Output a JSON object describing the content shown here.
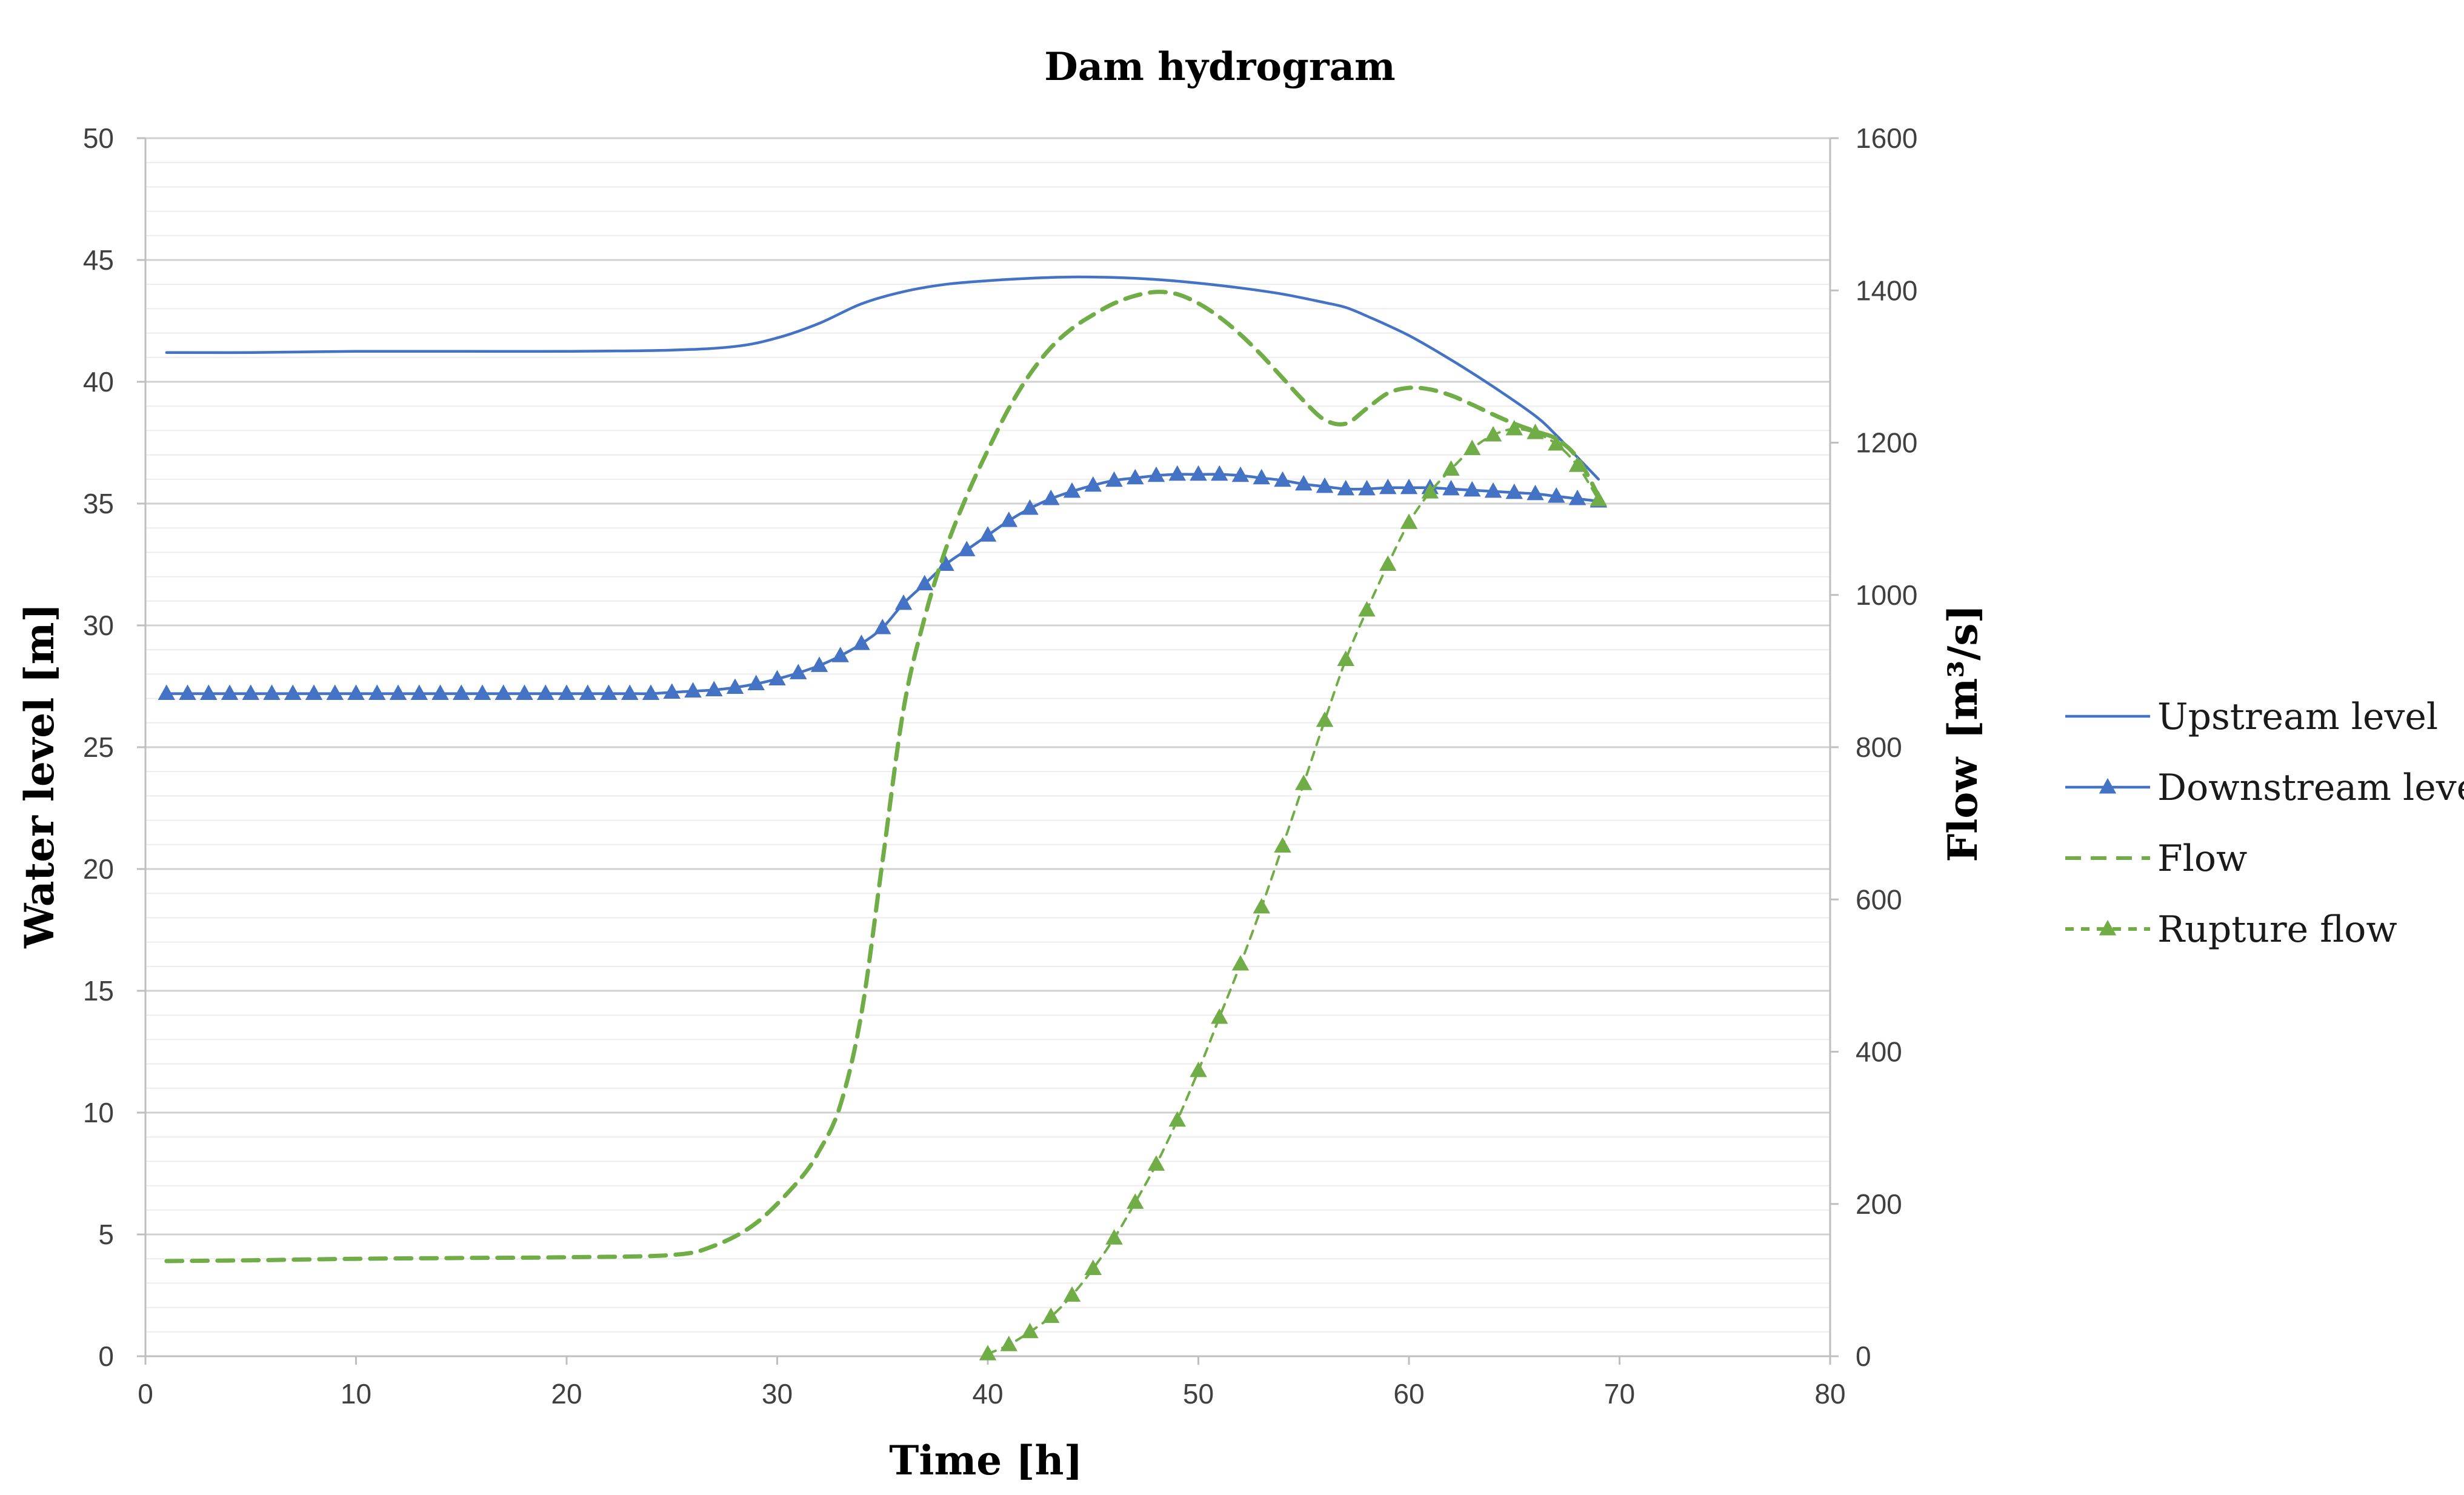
{
  "chart_data": {
    "type": "line",
    "title": "Dam hydrogram",
    "xlabel": "Time [h]",
    "ylabel_left": "Water level [m]",
    "ylabel_right_main": "Flow",
    "ylabel_right_unit": "[m³/s]",
    "xlim": [
      0,
      80
    ],
    "ylim_left": [
      0,
      50
    ],
    "ylim_right": [
      0,
      1600
    ],
    "x_ticks": [
      "0",
      "10",
      "20",
      "30",
      "40",
      "50",
      "60",
      "70",
      "80"
    ],
    "y_left_ticks": [
      "0",
      "5",
      "10",
      "15",
      "20",
      "25",
      "30",
      "35",
      "40",
      "45",
      "50"
    ],
    "y_right_ticks": [
      "0",
      "200",
      "400",
      "600",
      "800",
      "1000",
      "1200",
      "1400",
      "1600"
    ],
    "grid": true,
    "legend_position": "right",
    "colors": {
      "blue": "#4472C4",
      "green": "#70AD47",
      "grid": "#d9d9d9",
      "axis": "#bfbfbf"
    },
    "series": [
      {
        "name": "Upstream level",
        "axis": "left",
        "style": "solid",
        "marker": "none",
        "color": "#4472C4",
        "x": [
          1,
          5,
          10,
          15,
          20,
          25,
          28,
          30,
          32,
          34,
          36,
          38,
          40,
          42,
          44,
          46,
          48,
          50,
          52,
          54,
          56,
          57,
          58,
          60,
          62,
          64,
          66,
          67,
          68,
          69
        ],
        "y": [
          41.2,
          41.2,
          41.25,
          41.25,
          41.25,
          41.3,
          41.45,
          41.8,
          42.4,
          43.2,
          43.7,
          44.0,
          44.15,
          44.25,
          44.3,
          44.28,
          44.2,
          44.05,
          43.85,
          43.6,
          43.25,
          43.05,
          42.7,
          41.9,
          40.9,
          39.8,
          38.6,
          37.8,
          36.9,
          36.0
        ]
      },
      {
        "name": "Downstream level",
        "axis": "left",
        "style": "solid",
        "marker": "triangle",
        "color": "#4472C4",
        "x": [
          1,
          2,
          3,
          4,
          5,
          6,
          7,
          8,
          9,
          10,
          11,
          12,
          13,
          14,
          15,
          16,
          17,
          18,
          19,
          20,
          21,
          22,
          23,
          24,
          25,
          26,
          27,
          28,
          29,
          30,
          31,
          32,
          33,
          34,
          35,
          36,
          37,
          38,
          39,
          40,
          41,
          42,
          43,
          44,
          45,
          46,
          47,
          48,
          49,
          50,
          51,
          52,
          53,
          54,
          55,
          56,
          57,
          58,
          59,
          60,
          61,
          62,
          63,
          64,
          65,
          66,
          67,
          68,
          69
        ],
        "y": [
          27.2,
          27.2,
          27.2,
          27.2,
          27.2,
          27.2,
          27.2,
          27.2,
          27.2,
          27.2,
          27.2,
          27.2,
          27.2,
          27.2,
          27.2,
          27.2,
          27.2,
          27.2,
          27.2,
          27.2,
          27.2,
          27.2,
          27.2,
          27.2,
          27.25,
          27.3,
          27.35,
          27.45,
          27.6,
          27.8,
          28.05,
          28.35,
          28.75,
          29.25,
          29.9,
          30.9,
          31.7,
          32.5,
          33.1,
          33.7,
          34.3,
          34.8,
          35.2,
          35.5,
          35.75,
          35.95,
          36.05,
          36.15,
          36.2,
          36.2,
          36.2,
          36.15,
          36.05,
          35.95,
          35.8,
          35.7,
          35.6,
          35.6,
          35.65,
          35.65,
          35.65,
          35.6,
          35.55,
          35.5,
          35.45,
          35.4,
          35.3,
          35.2,
          35.1
        ]
      },
      {
        "name": "Flow",
        "axis": "right",
        "style": "dashed",
        "marker": "none",
        "color": "#70AD47",
        "x": [
          1,
          5,
          10,
          15,
          20,
          25,
          27,
          29,
          31,
          32,
          33,
          34,
          35,
          36,
          37,
          38,
          39,
          40,
          41,
          42,
          43,
          44,
          45,
          46,
          47,
          48,
          49,
          50,
          51,
          52,
          53,
          54,
          55,
          56,
          57,
          58,
          59,
          60,
          61,
          62,
          63,
          64,
          65,
          66,
          67,
          68,
          69
        ],
        "y": [
          125,
          126,
          128,
          129,
          130,
          133,
          145,
          175,
          230,
          270,
          330,
          450,
          650,
          850,
          970,
          1060,
          1130,
          1190,
          1245,
          1290,
          1325,
          1350,
          1368,
          1383,
          1393,
          1398,
          1395,
          1383,
          1365,
          1342,
          1315,
          1285,
          1255,
          1230,
          1225,
          1245,
          1265,
          1272,
          1270,
          1262,
          1250,
          1237,
          1225,
          1215,
          1205,
          1180,
          1130
        ]
      },
      {
        "name": "Rupture flow",
        "axis": "right",
        "style": "dashed",
        "marker": "triangle",
        "color": "#70AD47",
        "x": [
          40,
          41,
          42,
          43,
          44,
          45,
          46,
          47,
          48,
          49,
          50,
          51,
          52,
          53,
          54,
          55,
          56,
          57,
          58,
          59,
          60,
          61,
          62,
          63,
          64,
          65,
          66,
          67,
          68,
          69
        ],
        "y": [
          3,
          15,
          32,
          52,
          80,
          115,
          155,
          202,
          252,
          310,
          375,
          445,
          515,
          590,
          670,
          752,
          835,
          915,
          980,
          1040,
          1095,
          1135,
          1165,
          1192,
          1210,
          1218,
          1213,
          1198,
          1170,
          1125
        ]
      }
    ]
  }
}
